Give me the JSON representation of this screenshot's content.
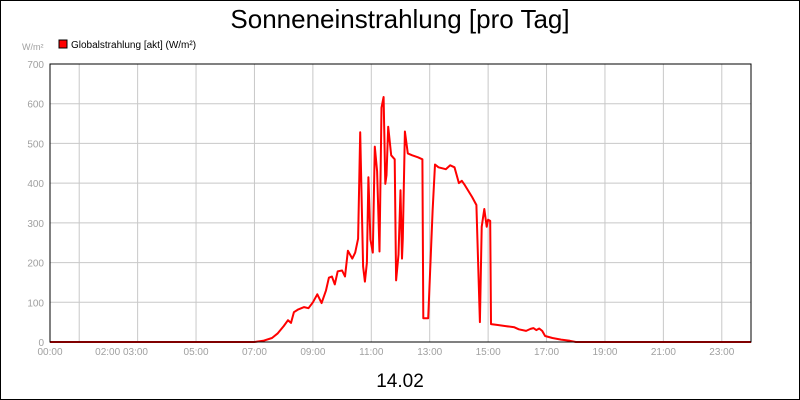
{
  "chart_data": {
    "type": "line",
    "title": "Sonneneinstrahlung [pro Tag]",
    "ylabel": "W/m²",
    "xlabel": "14.02",
    "ylim": [
      0,
      700
    ],
    "xlim": [
      0,
      24
    ],
    "yticks": [
      "0",
      "100",
      "200",
      "300",
      "400",
      "500",
      "600",
      "700"
    ],
    "xticks": [
      "00:00",
      "02:00 03:00",
      "05:00",
      "07:00",
      "09:00",
      "11:00",
      "13:00",
      "15:00",
      "17:00",
      "19:00",
      "21:00",
      "23:00"
    ],
    "legend": "top-left",
    "grid": true,
    "series": [
      {
        "name": "Globalstrahlung [akt] (W/m²)",
        "color": "#ff0000",
        "points": [
          [
            0,
            0
          ],
          [
            7.0,
            0
          ],
          [
            7.3,
            3
          ],
          [
            7.6,
            10
          ],
          [
            7.8,
            22
          ],
          [
            8.0,
            40
          ],
          [
            8.15,
            55
          ],
          [
            8.25,
            48
          ],
          [
            8.35,
            75
          ],
          [
            8.5,
            82
          ],
          [
            8.7,
            88
          ],
          [
            8.85,
            85
          ],
          [
            9.0,
            100
          ],
          [
            9.15,
            120
          ],
          [
            9.3,
            98
          ],
          [
            9.45,
            130
          ],
          [
            9.55,
            162
          ],
          [
            9.65,
            165
          ],
          [
            9.75,
            145
          ],
          [
            9.85,
            178
          ],
          [
            10.0,
            180
          ],
          [
            10.1,
            165
          ],
          [
            10.2,
            230
          ],
          [
            10.35,
            210
          ],
          [
            10.45,
            225
          ],
          [
            10.55,
            260
          ],
          [
            10.62,
            528
          ],
          [
            10.72,
            190
          ],
          [
            10.78,
            152
          ],
          [
            10.85,
            200
          ],
          [
            10.9,
            415
          ],
          [
            10.97,
            258
          ],
          [
            11.05,
            225
          ],
          [
            11.12,
            492
          ],
          [
            11.2,
            430
          ],
          [
            11.28,
            228
          ],
          [
            11.35,
            590
          ],
          [
            11.42,
            617
          ],
          [
            11.48,
            398
          ],
          [
            11.52,
            420
          ],
          [
            11.58,
            542
          ],
          [
            11.68,
            470
          ],
          [
            11.8,
            460
          ],
          [
            11.85,
            155
          ],
          [
            11.93,
            220
          ],
          [
            12.0,
            382
          ],
          [
            12.05,
            210
          ],
          [
            12.08,
            260
          ],
          [
            12.15,
            530
          ],
          [
            12.25,
            475
          ],
          [
            12.4,
            470
          ],
          [
            12.6,
            465
          ],
          [
            12.75,
            460
          ],
          [
            12.78,
            60
          ],
          [
            12.95,
            60
          ],
          [
            13.1,
            330
          ],
          [
            13.18,
            447
          ],
          [
            13.3,
            440
          ],
          [
            13.55,
            435
          ],
          [
            13.7,
            445
          ],
          [
            13.85,
            440
          ],
          [
            14.0,
            400
          ],
          [
            14.1,
            406
          ],
          [
            14.2,
            395
          ],
          [
            14.45,
            365
          ],
          [
            14.6,
            345
          ],
          [
            14.72,
            50
          ],
          [
            14.78,
            290
          ],
          [
            14.87,
            335
          ],
          [
            14.95,
            290
          ],
          [
            15.0,
            308
          ],
          [
            15.07,
            305
          ],
          [
            15.1,
            45
          ],
          [
            15.3,
            43
          ],
          [
            15.6,
            40
          ],
          [
            15.9,
            37
          ],
          [
            16.05,
            32
          ],
          [
            16.3,
            28
          ],
          [
            16.45,
            33
          ],
          [
            16.55,
            35
          ],
          [
            16.65,
            30
          ],
          [
            16.75,
            34
          ],
          [
            16.85,
            28
          ],
          [
            16.95,
            15
          ],
          [
            17.2,
            10
          ],
          [
            17.5,
            6
          ],
          [
            17.8,
            3
          ],
          [
            18.0,
            0
          ],
          [
            24.0,
            0
          ]
        ]
      }
    ]
  }
}
